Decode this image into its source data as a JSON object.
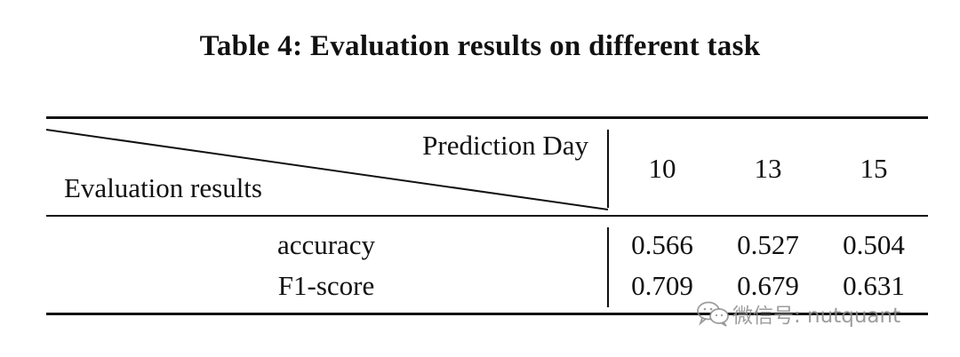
{
  "caption": "Table 4: Evaluation results on different task",
  "table": {
    "header": {
      "diagonal_top_label": "Prediction Day",
      "diagonal_bottom_label": "Evaluation results",
      "columns": [
        "10",
        "13",
        "15"
      ]
    },
    "rows": [
      {
        "label": "accuracy",
        "values": [
          "0.566",
          "0.527",
          "0.504"
        ]
      },
      {
        "label": "F1-score",
        "values": [
          "0.709",
          "0.679",
          "0.631"
        ]
      }
    ]
  },
  "watermark": {
    "icon": "wechat-icon",
    "text": "微信号: nutquant"
  }
}
